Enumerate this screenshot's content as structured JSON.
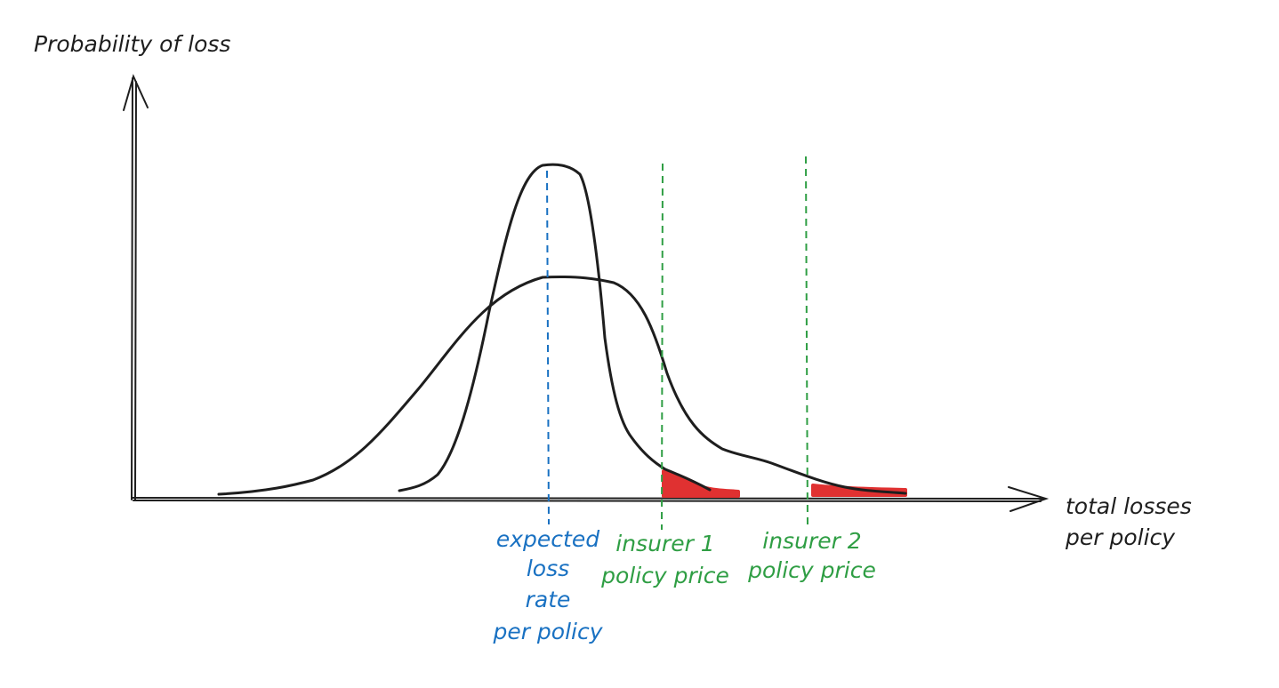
{
  "labels": {
    "y_axis": "Probability of loss",
    "x_axis_line1": "total losses",
    "x_axis_line2": "per policy",
    "expected_line1": "expected",
    "expected_line2": "loss",
    "expected_line3": "rate",
    "expected_line4": "per policy",
    "insurer1_line1": "insurer 1",
    "insurer1_line2": "policy price",
    "insurer2_line1": "insurer 2",
    "insurer2_line2": "policy price"
  },
  "colors": {
    "ink": "#1e1e1e",
    "expected_marker": "#1971c2",
    "price_marker": "#2f9e44",
    "tail_fill": "#e03131"
  }
}
